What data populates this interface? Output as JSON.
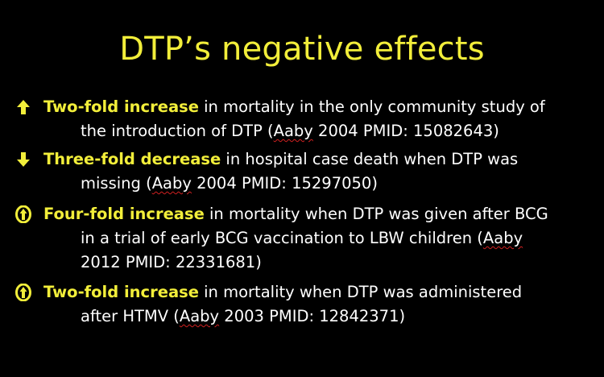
{
  "slide": {
    "title": "DTP’s negative effects",
    "accent_color": "#f2ee3a",
    "text_color": "#ffffff",
    "background": "#000000"
  },
  "bullets": [
    {
      "icon": "arrow-up-icon",
      "highlight": "Two-fold increase",
      "text_a": " in mortality in the only community study of",
      "text_b_pre": "the introduction of DTP  (",
      "author": "Aaby",
      "text_b_post": " 2004 PMID: 15082643)"
    },
    {
      "icon": "arrow-down-icon",
      "highlight": "Three-fold decrease",
      "text_a": " in hospital case death when DTP was",
      "text_b_pre": "missing  (",
      "author": "Aaby",
      "text_b_post": " 2004 PMID: 15297050)"
    },
    {
      "icon": "circled-up-arrow-icon",
      "highlight": "Four-fold increase",
      "text_a": " in mortality when DTP was given after BCG",
      "text_b": "in a trial of early BCG vaccination to LBW children (",
      "author": "Aaby",
      "text_c": "2012 PMID: 22331681)"
    },
    {
      "icon": "circled-up-arrow-icon",
      "highlight": "Two-fold increase",
      "text_a": " in mortality when DTP was administered",
      "text_b_pre": "after HTMV (",
      "author": "Aaby",
      "text_b_post": " 2003 PMID: 12842371)"
    }
  ]
}
